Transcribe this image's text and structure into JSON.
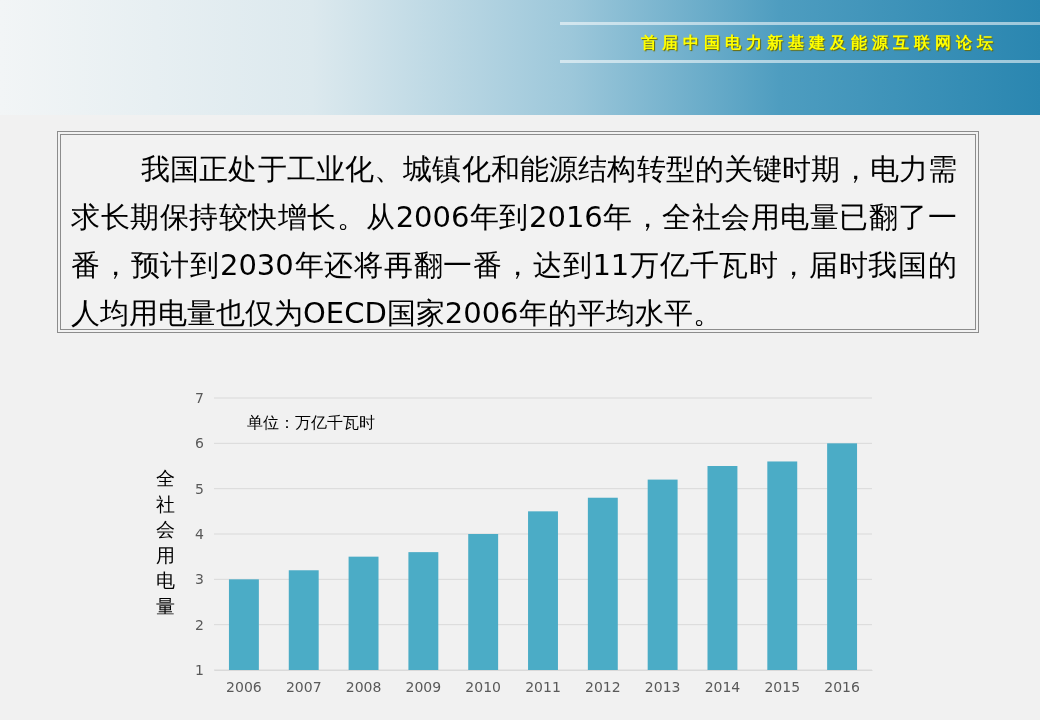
{
  "chart_data": {
    "type": "bar",
    "title": "首届中国电力新基建及能源互联网论坛",
    "subtitle": "我国正处于工业化、城镇化和能源结构转型的关键时期，电力需求长期保持较快增长。从2006年到2016年，全社会用电量已翻了一番，预计到2030年还将再翻一番，达到11万亿千瓦时，届时我国的人均用电量也仅为OECD国家2006年的平均水平。",
    "ylabel": "全社会用电量",
    "annotations": [
      "单位：万亿千瓦时"
    ],
    "categories": [
      "2006",
      "2007",
      "2008",
      "2009",
      "2010",
      "2011",
      "2012",
      "2013",
      "2014",
      "2015",
      "2016"
    ],
    "values": [
      3.0,
      3.2,
      3.5,
      3.6,
      4.0,
      4.5,
      4.8,
      5.2,
      5.5,
      5.6,
      6.0
    ],
    "color": "#4bacc6",
    "ylim": [
      1,
      7
    ],
    "yticks": [
      1,
      2,
      3,
      4,
      5,
      6,
      7
    ],
    "grid": "y"
  }
}
